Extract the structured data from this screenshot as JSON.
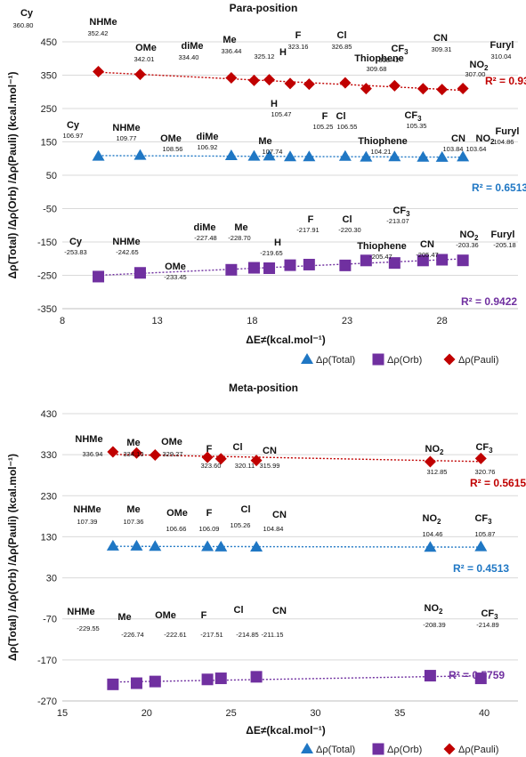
{
  "chart_data": [
    {
      "type": "scatter",
      "title": "Para-position",
      "xlabel": "ΔE≠(kcal.mol⁻¹)",
      "ylabel": "Δρ(Total) /Δρ(Orb) /Δρ(Pauli)  (kcal.mol⁻¹)",
      "xlim": [
        8,
        32
      ],
      "ylim": [
        -350,
        450
      ],
      "xticks": [
        8,
        13,
        18,
        23,
        28
      ],
      "yticks": [
        450,
        350,
        250,
        150,
        50,
        -50,
        -150,
        -250,
        -350
      ],
      "grid": "horizontal",
      "legend": "bottom",
      "categories": [
        "Cy",
        "NHMe",
        "OMe",
        "diMe",
        "Me",
        "H",
        "F",
        "Cl",
        "Thiophene",
        "CF3",
        "CN",
        "NO2",
        "Furyl"
      ],
      "x": [
        9.9,
        12.1,
        16.9,
        18.1,
        18.9,
        20.0,
        21.0,
        22.9,
        24.0,
        25.5,
        27.0,
        28.0,
        29.1
      ],
      "series": [
        {
          "name": "Δρ(Total)",
          "color": "#1f77c4",
          "marker": "triangle",
          "values": [
            106.97,
            109.77,
            108.56,
            106.92,
            107.74,
            105.47,
            105.25,
            106.55,
            104.21,
            105.35,
            103.84,
            103.64,
            104.86
          ],
          "labels": [
            "106.97",
            "109.77",
            "108.56",
            "106.92",
            "107.74",
            "105.47",
            "105.25",
            "106.55",
            "104.21",
            "105.35",
            "103.84",
            "103.64",
            "104.86"
          ],
          "r2": "R² = 0.6513"
        },
        {
          "name": "Δρ(Orb)",
          "color": "#7030a0",
          "marker": "square",
          "values": [
            -253.83,
            -242.65,
            -233.45,
            -227.48,
            -228.7,
            -219.65,
            -217.91,
            -220.3,
            -205.47,
            -213.07,
            -205.47,
            -203.36,
            -205.18
          ],
          "labels": [
            "-253.83",
            "-242.65",
            "-233.45",
            "-227.48",
            "-228.70",
            "-219.65",
            "-217.91",
            "-220.30",
            "-205.47",
            "-213.07",
            "-205.47",
            "-203.36",
            "-205.18"
          ],
          "r2": "R² = 0.9422"
        },
        {
          "name": "Δρ(Pauli)",
          "color": "#c00000",
          "marker": "diamond",
          "values": [
            360.8,
            352.42,
            342.01,
            334.4,
            336.44,
            325.12,
            323.16,
            326.85,
            309.68,
            318.42,
            309.31,
            307.0,
            310.04
          ],
          "labels": [
            "360.80",
            "352.42",
            "342.01",
            "334.40",
            "336.44",
            "325.12",
            "323.16",
            "326.85",
            "309.68",
            "318.42",
            "309.31",
            "307.00",
            "310.04"
          ],
          "r2": "R² = 0.9373"
        }
      ]
    },
    {
      "type": "scatter",
      "title": "Meta-position",
      "xlabel": "ΔE≠(kcal.mol⁻¹)",
      "ylabel": "Δρ(Total) /Δρ(Orb) /Δρ(Pauli)  (kcal.mol⁻¹)",
      "xlim": [
        15,
        42
      ],
      "ylim": [
        -270,
        430
      ],
      "xticks": [
        15,
        20,
        25,
        30,
        35,
        40
      ],
      "yticks": [
        430,
        330,
        230,
        130,
        30,
        -70,
        -170,
        -270
      ],
      "grid": "horizontal",
      "legend": "bottom",
      "categories": [
        "NHMe",
        "Me",
        "OMe",
        "F",
        "Cl",
        "CN",
        "NO2",
        "CF3"
      ],
      "x": [
        18.0,
        19.4,
        20.5,
        23.6,
        24.4,
        26.5,
        36.8,
        39.8
      ],
      "series": [
        {
          "name": "Δρ(Total)",
          "color": "#1f77c4",
          "marker": "triangle",
          "values": [
            107.39,
            107.36,
            106.66,
            106.09,
            105.26,
            104.84,
            104.46,
            105.87
          ],
          "labels": [
            "107.39",
            "107.36",
            "106.66",
            "106.09",
            "105.26",
            "104.84",
            "104.46",
            "105.87"
          ],
          "r2": "R² = 0.4513"
        },
        {
          "name": "Δρ(Orb)",
          "color": "#7030a0",
          "marker": "square",
          "values": [
            -229.55,
            -226.74,
            -222.61,
            -217.51,
            -214.85,
            -211.15,
            -208.39,
            -214.89
          ],
          "labels": [
            "-229.55",
            "-226.74",
            "-222.61",
            "-217.51",
            "-214.85",
            "-211.15",
            "-208.39",
            "-214.89"
          ],
          "r2": "R² = 0.5759"
        },
        {
          "name": "Δρ(Pauli)",
          "color": "#c00000",
          "marker": "diamond",
          "values": [
            336.94,
            334.1,
            329.27,
            323.6,
            320.11,
            315.99,
            312.85,
            320.76
          ],
          "labels": [
            "336.94",
            "334.10",
            "329.27",
            "323.60",
            "320.11",
            "315.99",
            "312.85",
            "320.76"
          ],
          "r2": "R² = 0.5615"
        }
      ]
    }
  ]
}
